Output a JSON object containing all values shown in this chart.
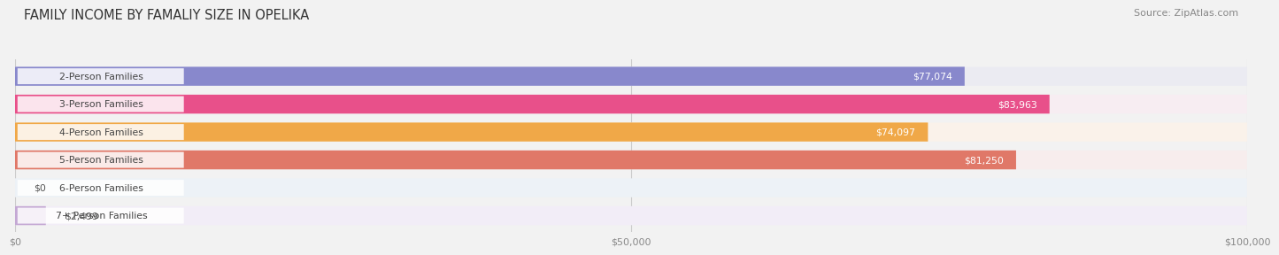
{
  "title": "FAMILY INCOME BY FAMALIY SIZE IN OPELIKA",
  "source": "Source: ZipAtlas.com",
  "categories": [
    "2-Person Families",
    "3-Person Families",
    "4-Person Families",
    "5-Person Families",
    "6-Person Families",
    "7+ Person Families"
  ],
  "values": [
    77074,
    83963,
    74097,
    81250,
    0,
    2499
  ],
  "bar_colors": [
    "#8888cc",
    "#e8508a",
    "#f0a848",
    "#e07868",
    "#a8bedd",
    "#c4a8d4"
  ],
  "bar_bg_colors": [
    "#ebebf2",
    "#f7edf2",
    "#faf2ea",
    "#f7eded",
    "#edf2f7",
    "#f2edf7"
  ],
  "xlim": [
    0,
    100000
  ],
  "xtick_vals": [
    0,
    50000,
    100000
  ],
  "xtick_labels": [
    "$0",
    "$50,000",
    "$100,000"
  ],
  "background_color": "#f2f2f2",
  "title_fontsize": 10.5,
  "source_fontsize": 8,
  "bar_height": 0.68,
  "value_threshold": 10000
}
